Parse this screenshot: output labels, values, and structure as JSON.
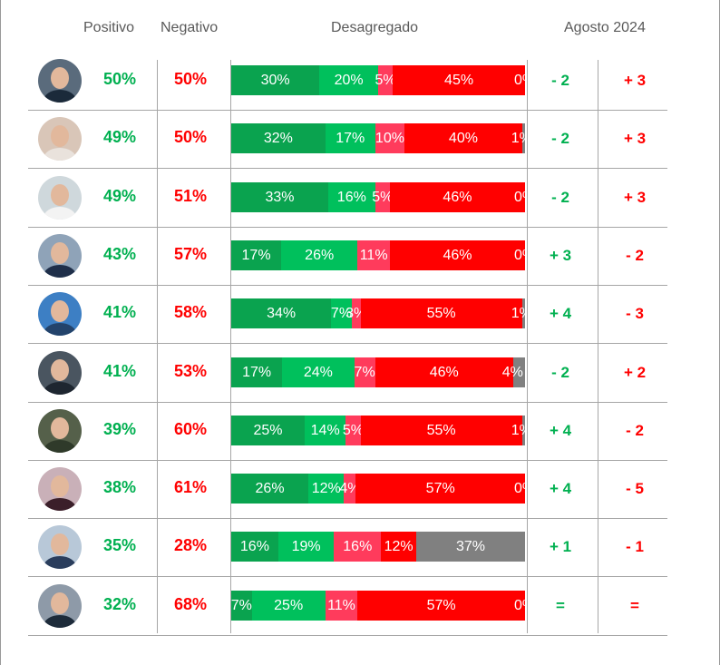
{
  "headers": {
    "positivo": "Positivo",
    "negativo": "Negativo",
    "desagregado": "Desagregado",
    "agosto": "Agosto 2024"
  },
  "colors": {
    "muy_positivo": "#0aa34f",
    "positivo": "#00c05c",
    "negativo": "#ff3b5c",
    "muy_negativo": "#ff0000",
    "ns_nc": "#808080",
    "green_text": "#00b050",
    "red_text": "#ff0000"
  },
  "chart_data": {
    "type": "table",
    "columns": [
      "Positivo",
      "Negativo",
      "Desagregado",
      "Agosto 2024"
    ],
    "segment_order": [
      "muy_positivo",
      "positivo",
      "negativo",
      "muy_negativo",
      "ns_nc"
    ],
    "rows": [
      {
        "positivo": "50%",
        "negativo": "50%",
        "segments": [
          30,
          20,
          5,
          45,
          0
        ],
        "change_pos": "- 2",
        "change_neg": "+ 3"
      },
      {
        "positivo": "49%",
        "negativo": "50%",
        "segments": [
          32,
          17,
          10,
          40,
          1
        ],
        "change_pos": "- 2",
        "change_neg": "+ 3"
      },
      {
        "positivo": "49%",
        "negativo": "51%",
        "segments": [
          33,
          16,
          5,
          46,
          0
        ],
        "change_pos": "- 2",
        "change_neg": "+ 3"
      },
      {
        "positivo": "43%",
        "negativo": "57%",
        "segments": [
          17,
          26,
          11,
          46,
          0
        ],
        "change_pos": "+ 3",
        "change_neg": "- 2"
      },
      {
        "positivo": "41%",
        "negativo": "58%",
        "segments": [
          34,
          7,
          3,
          55,
          1
        ],
        "change_pos": "+ 4",
        "change_neg": "- 3"
      },
      {
        "positivo": "41%",
        "negativo": "53%",
        "segments": [
          17,
          24,
          7,
          46,
          4
        ],
        "change_pos": "- 2",
        "change_neg": "+ 2"
      },
      {
        "positivo": "39%",
        "negativo": "60%",
        "segments": [
          25,
          14,
          5,
          55,
          1
        ],
        "change_pos": "+ 4",
        "change_neg": "- 2"
      },
      {
        "positivo": "38%",
        "negativo": "61%",
        "segments": [
          26,
          12,
          4,
          57,
          0
        ],
        "change_pos": "+ 4",
        "change_neg": "- 5"
      },
      {
        "positivo": "35%",
        "negativo": "28%",
        "segments": [
          16,
          19,
          16,
          12,
          37
        ],
        "change_pos": "+ 1",
        "change_neg": "- 1"
      },
      {
        "positivo": "32%",
        "negativo": "68%",
        "segments": [
          7,
          25,
          11,
          57,
          0
        ],
        "change_pos": "=",
        "change_neg": "="
      }
    ]
  }
}
